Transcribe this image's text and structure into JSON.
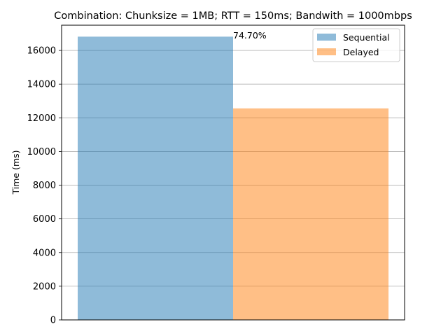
{
  "chart_data": {
    "type": "bar",
    "title": "Combination: Chunksize = 1MB; RTT = 150ms; Bandwith = 1000mbps",
    "xlabel": "",
    "ylabel": "Time (ms)",
    "ylim": [
      0,
      17500
    ],
    "yticks": [
      0,
      2000,
      4000,
      6000,
      8000,
      10000,
      12000,
      14000,
      16000
    ],
    "grid": "y-axis horizontal lines",
    "legend_position": "top-right",
    "annotation": "74.70%",
    "series": [
      {
        "name": "Sequential",
        "value": 16820,
        "color": "#1f77b4",
        "opacity": 0.5
      },
      {
        "name": "Delayed",
        "value": 12560,
        "color": "#ff7f0e",
        "opacity": 0.5
      }
    ]
  }
}
